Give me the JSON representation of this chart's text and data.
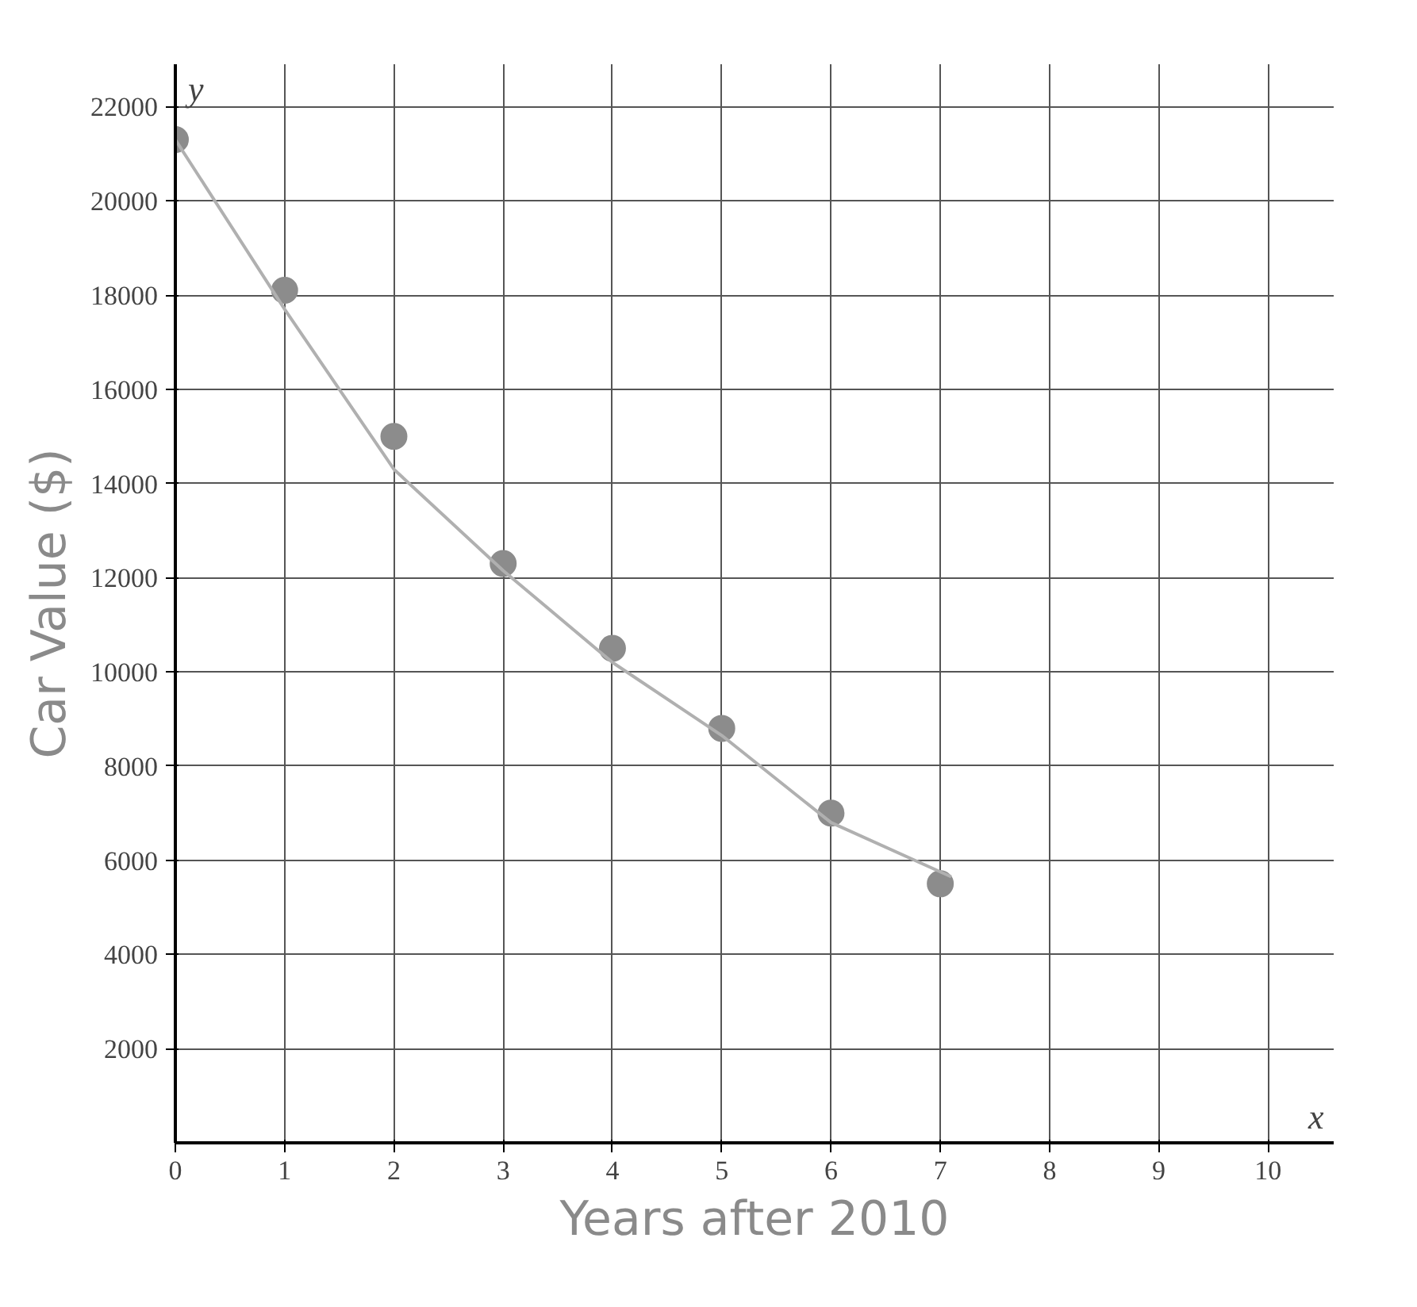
{
  "chart_data": {
    "type": "scatter",
    "xlabel": "Years after 2010",
    "ylabel": "Car Value ($)",
    "x": [
      0,
      1,
      2,
      3,
      4,
      5,
      6,
      7
    ],
    "series": [
      {
        "color": "#8c8c8c",
        "values": [
          21300,
          18100,
          15000,
          12300,
          10500,
          8800,
          7000,
          5500
        ],
        "marker": "circle"
      },
      {
        "type": "line",
        "color": "#b0b0b0",
        "x": [
          0,
          1,
          2,
          3,
          4,
          5,
          6,
          7.1
        ],
        "values": [
          21300,
          17700,
          14300,
          12150,
          10200,
          8650,
          6800,
          5650
        ],
        "marker": "none"
      }
    ],
    "annotations": [
      "x",
      "y"
    ],
    "xlim": [
      0,
      10.6
    ],
    "ylim": [
      0,
      22900
    ],
    "xticks": [
      0,
      1,
      2,
      3,
      4,
      5,
      6,
      7,
      8,
      9,
      10
    ],
    "yticks": [
      2000,
      4000,
      6000,
      8000,
      10000,
      12000,
      14000,
      16000,
      18000,
      20000,
      22000
    ],
    "grid": true
  }
}
